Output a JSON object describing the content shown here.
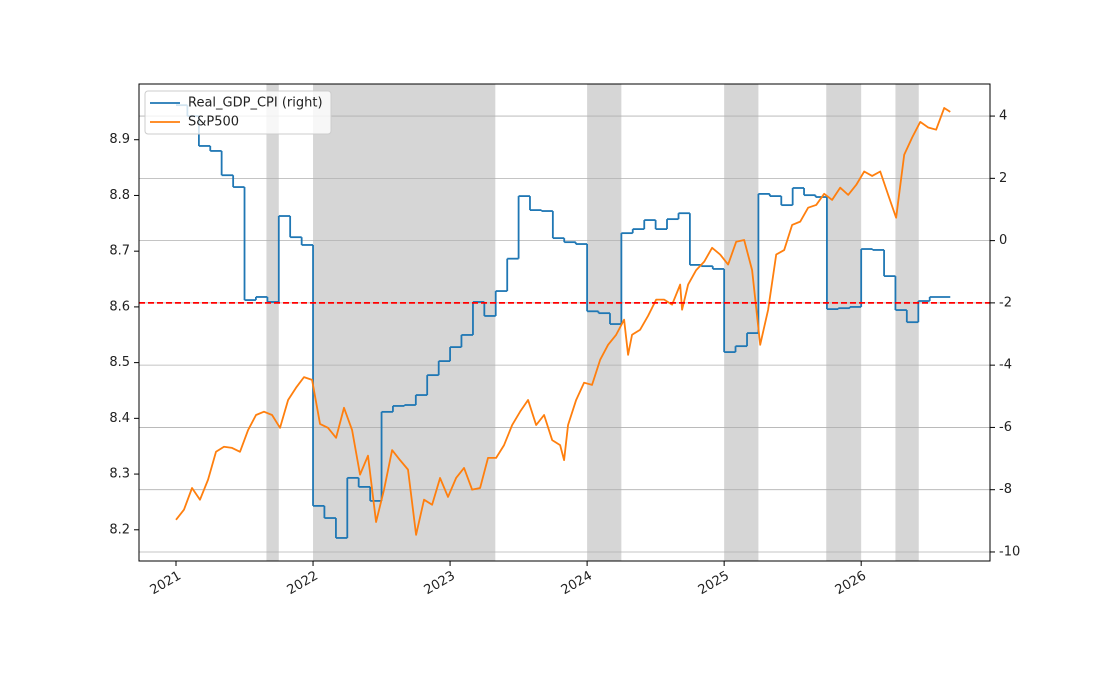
{
  "chart_data": {
    "type": "line",
    "xlim": [
      2020.73,
      2026.94
    ],
    "xticks": [
      2021,
      2022,
      2023,
      2024,
      2025,
      2026
    ],
    "ylim": [
      8.144,
      9.0
    ],
    "yticks": [
      8.2,
      8.3,
      8.4,
      8.5,
      8.6,
      8.7,
      8.8,
      8.9
    ],
    "y2lim": [
      -10.29,
      5.03
    ],
    "y2ticks": [
      -10,
      -8,
      -6,
      -4,
      -2,
      0,
      2,
      4
    ],
    "grid": true,
    "legend": "upper left",
    "hline": {
      "value": -2,
      "axis": "y2",
      "color": "#ff0000"
    },
    "spans": [
      [
        2021.66,
        2021.75
      ],
      [
        2022.0,
        2023.33
      ],
      [
        2024.0,
        2024.25
      ],
      [
        2025.0,
        2025.25
      ],
      [
        2025.745,
        2026.0
      ],
      [
        2026.25,
        2026.42
      ]
    ],
    "span_color": "#d6d6d6",
    "series": [
      {
        "name": "Real_GDP_CPI (right)",
        "color": "#1f77b4",
        "axis": "y2",
        "step": true,
        "x": [
          2021.0,
          2021.083,
          2021.167,
          2021.25,
          2021.333,
          2021.417,
          2021.5,
          2021.583,
          2021.667,
          2021.75,
          2021.833,
          2021.917,
          2022.0,
          2022.083,
          2022.167,
          2022.25,
          2022.333,
          2022.417,
          2022.5,
          2022.583,
          2022.667,
          2022.75,
          2022.833,
          2022.917,
          2023.0,
          2023.083,
          2023.167,
          2023.25,
          2023.333,
          2023.417,
          2023.5,
          2023.583,
          2023.667,
          2023.75,
          2023.833,
          2023.917,
          2024.0,
          2024.083,
          2024.167,
          2024.25,
          2024.333,
          2024.417,
          2024.5,
          2024.583,
          2024.667,
          2024.75,
          2024.833,
          2024.917,
          2025.0,
          2025.083,
          2025.167,
          2025.25,
          2025.333,
          2025.417,
          2025.5,
          2025.583,
          2025.667,
          2025.75,
          2025.833,
          2025.917,
          2026.0,
          2026.083,
          2026.167,
          2026.25,
          2026.333,
          2026.417,
          2026.5,
          2026.65
        ],
        "values": [
          4.35,
          4.0,
          3.04,
          2.88,
          2.1,
          1.72,
          -1.91,
          -1.81,
          -1.97,
          0.79,
          0.11,
          -0.14,
          -8.52,
          -8.91,
          -9.55,
          -7.62,
          -7.91,
          -8.36,
          -5.5,
          -5.31,
          -5.28,
          -4.96,
          -4.32,
          -3.87,
          -3.42,
          -3.03,
          -1.97,
          -2.42,
          -1.62,
          -0.58,
          1.43,
          0.98,
          0.95,
          0.08,
          -0.05,
          -0.11,
          -2.27,
          -2.33,
          -2.68,
          0.24,
          0.37,
          0.66,
          0.37,
          0.69,
          0.88,
          -0.78,
          -0.82,
          -0.91,
          -3.58,
          -3.39,
          -2.97,
          1.5,
          1.43,
          1.14,
          1.69,
          1.46,
          1.4,
          -2.2,
          -2.17,
          -2.13,
          -0.27,
          -0.3,
          -1.14,
          -2.23,
          -2.62,
          -1.94,
          -1.81,
          -1.81
        ]
      },
      {
        "name": "S&P500",
        "color": "#ff7f0e",
        "axis": "y",
        "x": [
          2021.0,
          2021.058,
          2021.117,
          2021.175,
          2021.234,
          2021.292,
          2021.35,
          2021.409,
          2021.467,
          2021.526,
          2021.584,
          2021.642,
          2021.701,
          2021.759,
          2021.818,
          2021.876,
          2021.934,
          2021.993,
          2022.051,
          2022.109,
          2022.168,
          2022.226,
          2022.285,
          2022.343,
          2022.401,
          2022.46,
          2022.518,
          2022.577,
          2022.635,
          2022.693,
          2022.752,
          2022.81,
          2022.869,
          2022.927,
          2022.985,
          2023.044,
          2023.102,
          2023.161,
          2023.219,
          2023.277,
          2023.336,
          2023.394,
          2023.453,
          2023.511,
          2023.569,
          2023.628,
          2023.686,
          2023.745,
          2023.803,
          2023.832,
          2023.861,
          2023.92,
          2023.978,
          2024.036,
          2024.095,
          2024.153,
          2024.212,
          2024.27,
          2024.299,
          2024.328,
          2024.387,
          2024.445,
          2024.504,
          2024.562,
          2024.62,
          2024.679,
          2024.693,
          2024.737,
          2024.796,
          2024.854,
          2024.912,
          2024.971,
          2025.029,
          2025.088,
          2025.146,
          2025.204,
          2025.263,
          2025.321,
          2025.38,
          2025.438,
          2025.496,
          2025.555,
          2025.613,
          2025.672,
          2025.73,
          2025.788,
          2025.847,
          2025.905,
          2025.964,
          2026.022,
          2026.08,
          2026.139,
          2026.197,
          2026.255,
          2026.314,
          2026.372,
          2026.431,
          2026.489,
          2026.547,
          2026.606,
          2026.65
        ],
        "values": [
          8.218,
          8.236,
          8.275,
          8.254,
          8.29,
          8.34,
          8.349,
          8.347,
          8.34,
          8.379,
          8.406,
          8.412,
          8.406,
          8.383,
          8.433,
          8.455,
          8.474,
          8.469,
          8.39,
          8.383,
          8.365,
          8.419,
          8.379,
          8.299,
          8.333,
          8.214,
          8.272,
          8.343,
          8.325,
          8.308,
          8.191,
          8.254,
          8.245,
          8.293,
          8.259,
          8.293,
          8.311,
          8.272,
          8.275,
          8.329,
          8.329,
          8.352,
          8.388,
          8.412,
          8.433,
          8.388,
          8.406,
          8.361,
          8.352,
          8.325,
          8.388,
          8.433,
          8.464,
          8.46,
          8.505,
          8.532,
          8.55,
          8.577,
          8.514,
          8.55,
          8.559,
          8.584,
          8.613,
          8.613,
          8.604,
          8.64,
          8.595,
          8.64,
          8.666,
          8.681,
          8.706,
          8.694,
          8.676,
          8.717,
          8.72,
          8.666,
          8.532,
          8.595,
          8.694,
          8.702,
          8.747,
          8.753,
          8.778,
          8.783,
          8.803,
          8.792,
          8.814,
          8.801,
          8.819,
          8.843,
          8.835,
          8.843,
          8.801,
          8.76,
          8.873,
          8.904,
          8.932,
          8.922,
          8.918,
          8.957,
          8.95
        ]
      }
    ]
  }
}
